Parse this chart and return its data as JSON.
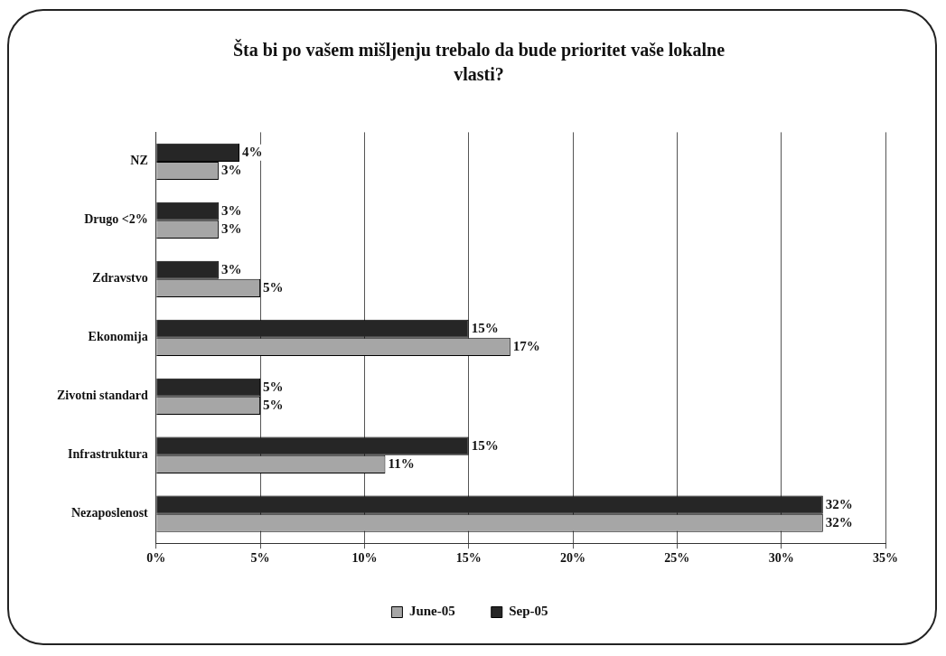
{
  "chart_data": {
    "type": "bar",
    "orientation": "horizontal",
    "title": "Šta bi po vašem mišljenju trebalo da bude prioritet vaše lokalne vlasti?",
    "categories": [
      "NZ",
      "Drugo <2%",
      "Zdravstvo",
      "Ekonomija",
      "Zivotni standard",
      "Infrastruktura",
      "Nezaposlenost"
    ],
    "series": [
      {
        "name": "June-05",
        "color": "#a6a6a6",
        "values": [
          3,
          3,
          5,
          17,
          5,
          11,
          32
        ],
        "value_labels": [
          "3%",
          "3%",
          "5%",
          "17%",
          "5%",
          "11%",
          "32%"
        ]
      },
      {
        "name": "Sep-05",
        "color": "#262626",
        "values": [
          4,
          3,
          3,
          15,
          5,
          15,
          32
        ],
        "value_labels": [
          "4%",
          "3%",
          "3%",
          "15%",
          "5%",
          "15%",
          "32%"
        ]
      }
    ],
    "xlim": [
      0,
      35
    ],
    "xticks": [
      {
        "value": 0,
        "label": "0%"
      },
      {
        "value": 5,
        "label": "5%"
      },
      {
        "value": 10,
        "label": "10%"
      },
      {
        "value": 15,
        "label": "15%"
      },
      {
        "value": 20,
        "label": "20%"
      },
      {
        "value": 25,
        "label": "25%"
      },
      {
        "value": 30,
        "label": "30%"
      },
      {
        "value": 35,
        "label": "35%"
      }
    ],
    "grid": "x",
    "legend": "bottom"
  }
}
